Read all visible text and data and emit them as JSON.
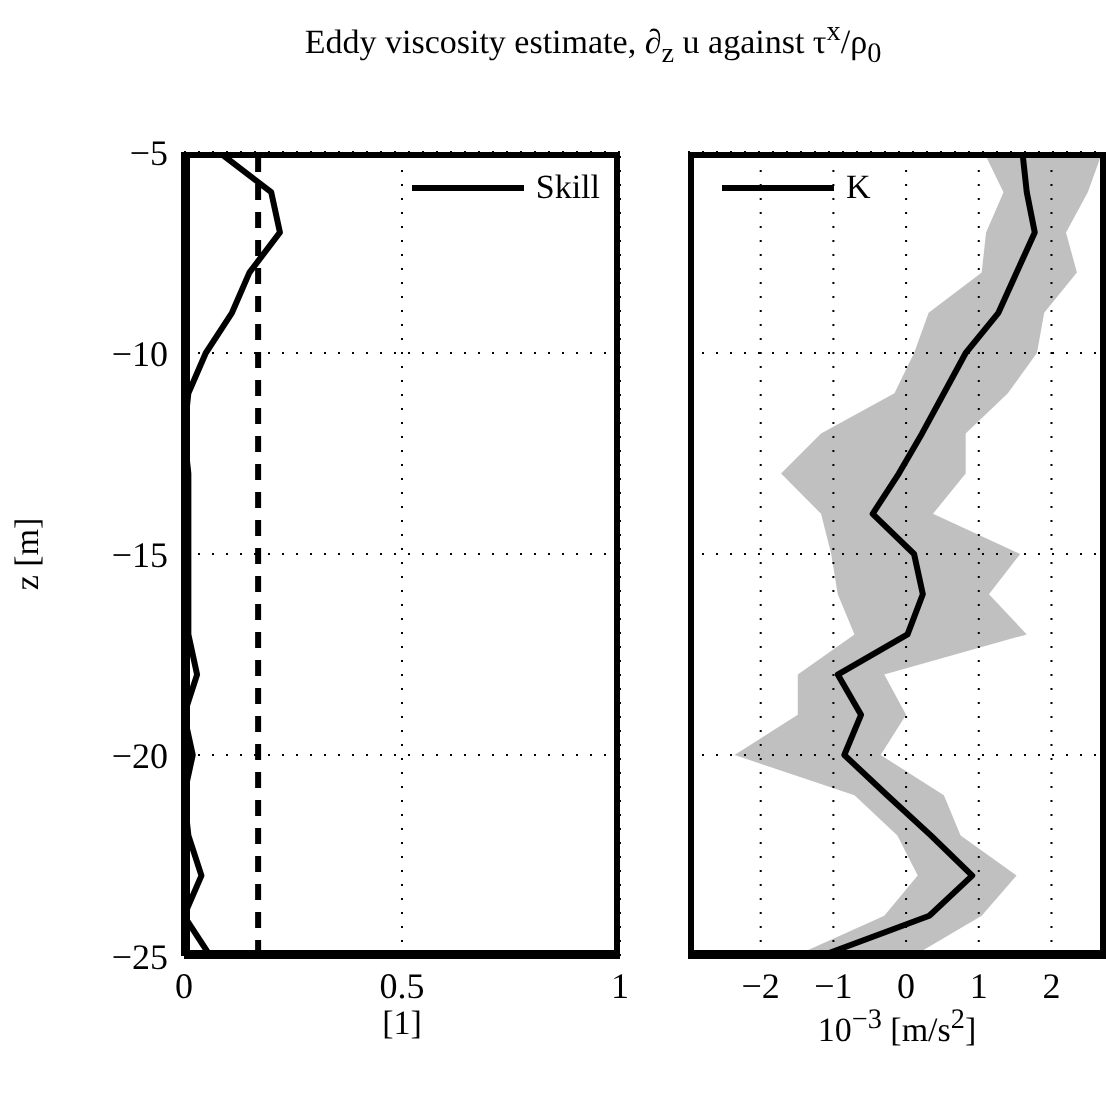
{
  "chart_data": [
    {
      "type": "line",
      "title": "Eddy viscosity estimate, ∂$_{z}$ u against τ$^{x}$/ρ$_{0}$",
      "orientation": "horizontal",
      "xlabel": "[1]",
      "ylabel": "z [m]",
      "x": [
        -5,
        -6,
        -7,
        -8,
        -9,
        -10,
        -11,
        -12,
        -13,
        -14,
        -15,
        -16,
        -17,
        -18,
        -19,
        -20,
        -21,
        -22,
        -23,
        -24,
        -25
      ],
      "series": [
        {
          "name": "Skill",
          "color": "#000000",
          "values": [
            0.08,
            0.2,
            0.22,
            0.15,
            0.11,
            0.05,
            0.01,
            0,
            0.01,
            0.01,
            0.01,
            0.01,
            0.01,
            0.03,
            0,
            0.02,
            0,
            0.01,
            0.04,
            0,
            0.06
          ]
        }
      ],
      "ref_lines": [
        {
          "axis": "x",
          "value": 0.17,
          "color": "#000000",
          "line_style": "dashed"
        }
      ],
      "xlim": [
        0,
        1
      ],
      "xticks": [
        0,
        0.5,
        1
      ],
      "ylim": [
        -25,
        -5
      ],
      "yticks": [
        {
          "value": -25,
          "label": "−25"
        },
        {
          "value": -20,
          "label": "−20"
        },
        {
          "value": -15,
          "label": "−15"
        },
        {
          "value": -10,
          "label": "−10"
        },
        {
          "value": -5,
          "label": "−5"
        }
      ],
      "grid": true,
      "legend": "top right",
      "line_style": "solid",
      "marker": "none"
    },
    {
      "type": "line",
      "orientation": "horizontal",
      "xlabel": "10$^{−3}$ [m/s$^{2}$]",
      "x": [
        -5,
        -6,
        -7,
        -8,
        -9,
        -10,
        -11,
        -12,
        -13,
        -14,
        -15,
        -16,
        -17,
        -18,
        -19,
        -20,
        -21,
        -22,
        -23,
        -24,
        -25
      ],
      "series": [
        {
          "name": "K",
          "color": "#000000",
          "values": [
            1.6,
            1.66,
            1.77,
            1.52,
            1.27,
            0.82,
            0.52,
            0.22,
            -0.1,
            -0.46,
            0.11,
            0.23,
            0.02,
            -0.94,
            -0.62,
            -0.85,
            -0.26,
            0.34,
            0.91,
            0.32,
            -1.17
          ],
          "lower": [
            1.07,
            1.34,
            1.1,
            1.04,
            0.31,
            0.11,
            -0.16,
            -1.17,
            -1.72,
            -1.17,
            -1.03,
            -0.94,
            -0.71,
            -1.49,
            -1.49,
            -2.36,
            -0.71,
            -0.12,
            0.16,
            -0.3,
            -1.53
          ],
          "upper": [
            2.7,
            2.5,
            2.2,
            2.35,
            1.9,
            1.8,
            1.4,
            0.82,
            0.82,
            0.37,
            1.57,
            1.14,
            1.66,
            -0.3,
            0,
            -0.35,
            0.52,
            0.75,
            1.52,
            1.04,
            0.1
          ]
        }
      ],
      "xlim": [
        -3,
        2.75
      ],
      "xticks": [
        {
          "value": -2,
          "label": "−2"
        },
        {
          "value": -1,
          "label": "−1"
        },
        0,
        1,
        2
      ],
      "ylim": [
        -25,
        -5
      ],
      "yticks": [
        -25,
        -20,
        -15,
        -10,
        -5
      ],
      "tick_labels": "x",
      "grid": true,
      "legend": "top left",
      "line_style": "solid",
      "marker": "none"
    }
  ]
}
